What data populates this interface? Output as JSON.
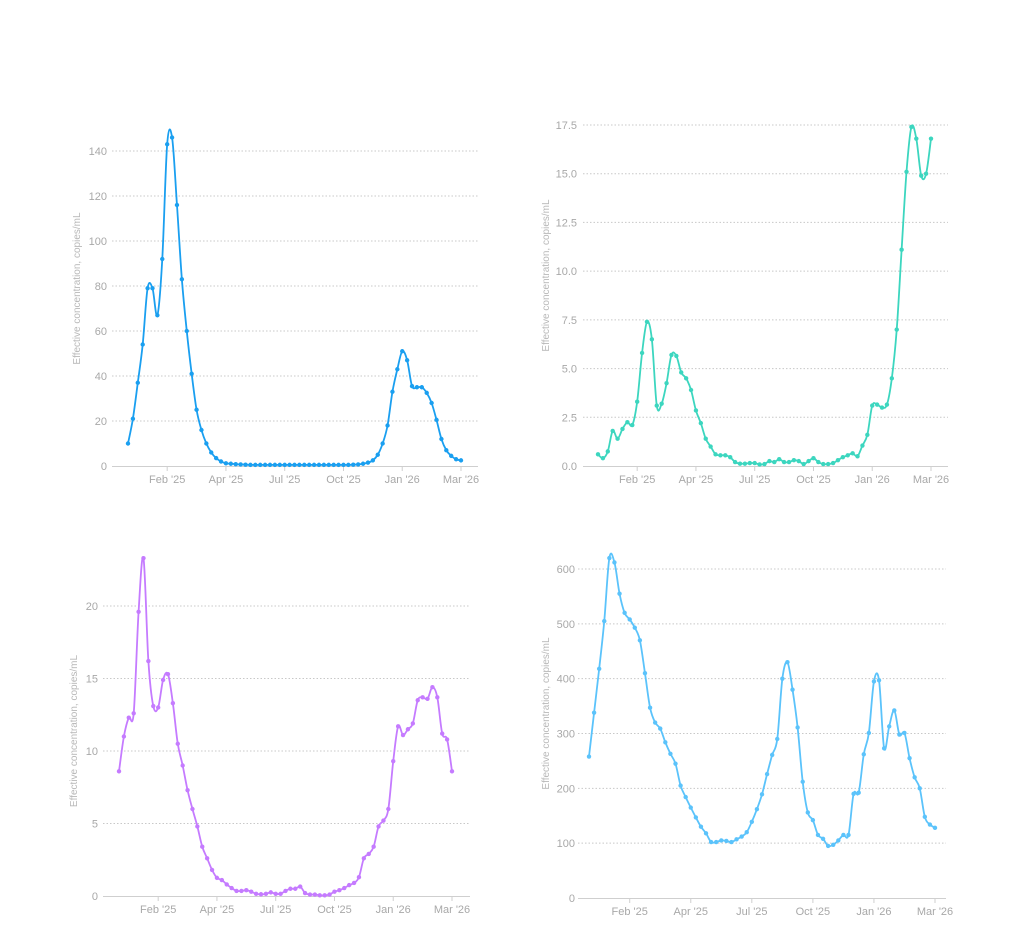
{
  "chart_data": [
    {
      "type": "line",
      "title": "",
      "ylabel": "Effective concentration, copies/mL",
      "ylim": [
        0,
        150
      ],
      "yticks": [
        0,
        20,
        40,
        60,
        80,
        100,
        120,
        140
      ],
      "xticks": [
        {
          "index": 8,
          "label": "Feb '25"
        },
        {
          "index": 20,
          "label": "Apr '25"
        },
        {
          "index": 32,
          "label": "Jul '25"
        },
        {
          "index": 44,
          "label": "Oct '25"
        },
        {
          "index": 56,
          "label": "Jan '26"
        },
        {
          "index": 68,
          "label": "Mar '26"
        }
      ],
      "color": "#1a9ff0",
      "grid": true,
      "values": [
        10,
        21,
        37,
        54,
        79,
        79,
        67,
        92,
        143,
        146,
        116,
        83,
        60,
        41,
        25,
        16,
        10,
        6,
        3.5,
        2,
        1.2,
        1,
        0.8,
        0.7,
        0.6,
        0.5,
        0.5,
        0.5,
        0.5,
        0.5,
        0.5,
        0.5,
        0.5,
        0.5,
        0.5,
        0.5,
        0.5,
        0.5,
        0.5,
        0.5,
        0.5,
        0.5,
        0.5,
        0.5,
        0.5,
        0.5,
        0.6,
        0.7,
        1,
        1.5,
        2.5,
        5,
        10,
        18,
        33,
        43,
        51,
        47,
        35.5,
        35,
        35,
        32.5,
        28,
        20.5,
        12,
        7,
        4.5,
        3,
        2.5
      ]
    },
    {
      "type": "line",
      "title": "",
      "ylabel": "Effective concentration, copies/mL",
      "ylim": [
        0,
        17.5
      ],
      "yticks": [
        0,
        2.5,
        5,
        7.5,
        10,
        12.5,
        15,
        17.5
      ],
      "ytick_labels": [
        "0.0",
        "2.5",
        "5.0",
        "7.5",
        "10.0",
        "12.5",
        "15.0",
        "17.5"
      ],
      "xticks": [
        {
          "index": 8,
          "label": "Feb '25"
        },
        {
          "index": 20,
          "label": "Apr '25"
        },
        {
          "index": 32,
          "label": "Jul '25"
        },
        {
          "index": 44,
          "label": "Oct '25"
        },
        {
          "index": 56,
          "label": "Jan '26"
        },
        {
          "index": 68,
          "label": "Mar '26"
        }
      ],
      "color": "#3cd6bf",
      "grid": true,
      "values": [
        0.6,
        0.4,
        0.75,
        1.8,
        1.4,
        1.9,
        2.25,
        2.1,
        3.3,
        5.8,
        7.4,
        6.5,
        3.1,
        3.2,
        4.25,
        5.7,
        5.65,
        4.8,
        4.5,
        3.9,
        2.85,
        2.2,
        1.4,
        1.0,
        0.6,
        0.55,
        0.55,
        0.45,
        0.2,
        0.12,
        0.12,
        0.15,
        0.15,
        0.08,
        0.1,
        0.25,
        0.2,
        0.35,
        0.2,
        0.2,
        0.3,
        0.25,
        0.1,
        0.25,
        0.4,
        0.2,
        0.1,
        0.1,
        0.15,
        0.3,
        0.45,
        0.55,
        0.65,
        0.5,
        1.05,
        1.6,
        3.1,
        3.15,
        3.0,
        3.15,
        4.5,
        7.0,
        11.1,
        15.1,
        17.4,
        16.8,
        14.9,
        15.0,
        16.8
      ]
    },
    {
      "type": "line",
      "title": "",
      "ylabel": "Effective concentration, copies/mL",
      "ylim": [
        0,
        24
      ],
      "yticks": [
        0,
        5,
        10,
        15,
        20
      ],
      "xticks": [
        {
          "index": 8,
          "label": "Feb '25"
        },
        {
          "index": 20,
          "label": "Apr '25"
        },
        {
          "index": 32,
          "label": "Jul '25"
        },
        {
          "index": 44,
          "label": "Oct '25"
        },
        {
          "index": 56,
          "label": "Jan '26"
        },
        {
          "index": 68,
          "label": "Mar '26"
        }
      ],
      "color": "#c57bff",
      "grid": true,
      "values": [
        8.6,
        11,
        12.3,
        12.6,
        19.6,
        23.3,
        16.2,
        13.1,
        13,
        14.9,
        15.3,
        13.3,
        10.5,
        9,
        7.3,
        6,
        4.8,
        3.4,
        2.6,
        1.8,
        1.25,
        1.1,
        0.8,
        0.55,
        0.35,
        0.35,
        0.4,
        0.3,
        0.15,
        0.12,
        0.15,
        0.25,
        0.15,
        0.15,
        0.35,
        0.5,
        0.5,
        0.65,
        0.2,
        0.1,
        0.1,
        0.05,
        0.05,
        0.1,
        0.3,
        0.4,
        0.55,
        0.75,
        0.9,
        1.3,
        2.6,
        2.9,
        3.4,
        4.8,
        5.2,
        6,
        9.3,
        11.7,
        11.1,
        11.5,
        11.9,
        13.5,
        13.7,
        13.6,
        14.4,
        13.7,
        11.2,
        10.8,
        8.6
      ]
    },
    {
      "type": "line",
      "title": "",
      "ylabel": "Effective concentration, copies/mL",
      "ylim": [
        0,
        640
      ],
      "yticks": [
        0,
        100,
        200,
        300,
        400,
        500,
        600
      ],
      "xticks": [
        {
          "index": 8,
          "label": "Feb '25"
        },
        {
          "index": 20,
          "label": "Apr '25"
        },
        {
          "index": 32,
          "label": "Jul '25"
        },
        {
          "index": 44,
          "label": "Oct '25"
        },
        {
          "index": 56,
          "label": "Jan '26"
        },
        {
          "index": 68,
          "label": "Mar '26"
        }
      ],
      "color": "#5bc3fb",
      "grid": true,
      "values": [
        258,
        338,
        418,
        505,
        620,
        612,
        555,
        520,
        508,
        493,
        470,
        410,
        347,
        320,
        309,
        284,
        263,
        245,
        205,
        184,
        165,
        147,
        130,
        118,
        102,
        102,
        105,
        104,
        102,
        107,
        112,
        120,
        139,
        162,
        189,
        226,
        261,
        290,
        400,
        430,
        380,
        311,
        212,
        156,
        142,
        115,
        108,
        95,
        97,
        105,
        115,
        115,
        190,
        192,
        262,
        301,
        395,
        397,
        273,
        313,
        342,
        298,
        301,
        255,
        220,
        200,
        148,
        134,
        128
      ]
    }
  ]
}
